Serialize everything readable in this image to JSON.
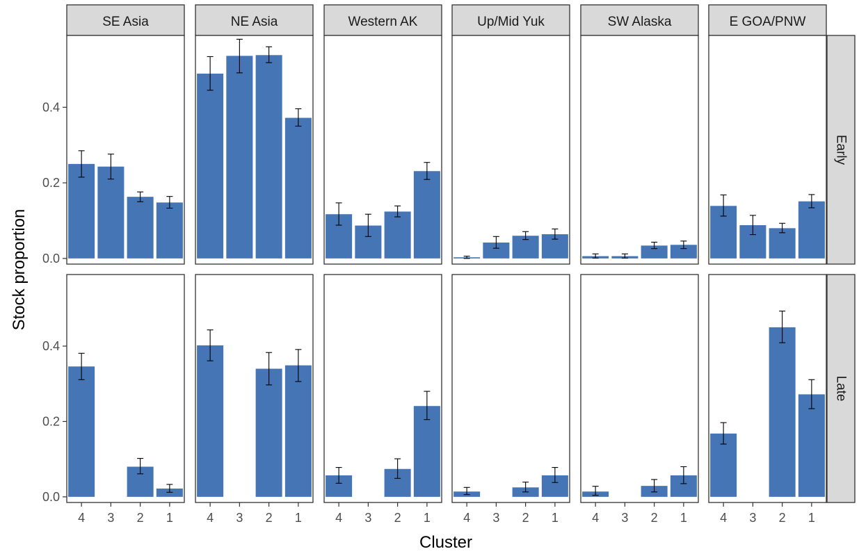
{
  "chart_data": {
    "type": "bar",
    "facet_columns": [
      "SE Asia",
      "NE Asia",
      "Western AK",
      "Up/Mid Yuk",
      "SW Alaska",
      "E GOA/PNW"
    ],
    "facet_rows": [
      "Early",
      "Late"
    ],
    "categories": [
      "4",
      "3",
      "2",
      "1"
    ],
    "xlabel": "Cluster",
    "ylabel": "Stock proportion",
    "ylim": [
      -0.015,
      0.59
    ],
    "yticks": [
      0.0,
      0.2,
      0.4
    ],
    "ytick_labels": [
      "0.0",
      "0.2",
      "0.4"
    ],
    "bar_color": "#4575b4",
    "strip_fill": "#d9d9d9",
    "grid": false,
    "error_bars": true,
    "panels": [
      {
        "row": "Early",
        "col": "SE Asia",
        "values": [
          0.25,
          0.243,
          0.163,
          0.148
        ],
        "lower": [
          0.215,
          0.21,
          0.15,
          0.133
        ],
        "upper": [
          0.285,
          0.276,
          0.176,
          0.164
        ]
      },
      {
        "row": "Early",
        "col": "NE Asia",
        "values": [
          0.489,
          0.536,
          0.538,
          0.372
        ],
        "lower": [
          0.445,
          0.491,
          0.518,
          0.35
        ],
        "upper": [
          0.534,
          0.58,
          0.56,
          0.396
        ]
      },
      {
        "row": "Early",
        "col": "Western AK",
        "values": [
          0.117,
          0.087,
          0.124,
          0.231
        ],
        "lower": [
          0.088,
          0.058,
          0.11,
          0.209
        ],
        "upper": [
          0.147,
          0.117,
          0.139,
          0.254
        ]
      },
      {
        "row": "Early",
        "col": "Up/Mid Yuk",
        "values": [
          0.003,
          0.042,
          0.06,
          0.064
        ],
        "lower": [
          0.0,
          0.027,
          0.05,
          0.051
        ],
        "upper": [
          0.006,
          0.058,
          0.071,
          0.078
        ]
      },
      {
        "row": "Early",
        "col": "SW Alaska",
        "values": [
          0.006,
          0.006,
          0.034,
          0.036
        ],
        "lower": [
          0.001,
          0.001,
          0.026,
          0.026
        ],
        "upper": [
          0.012,
          0.012,
          0.043,
          0.046
        ]
      },
      {
        "row": "Early",
        "col": "E GOA/PNW",
        "values": [
          0.139,
          0.088,
          0.08,
          0.151
        ],
        "lower": [
          0.112,
          0.063,
          0.068,
          0.134
        ],
        "upper": [
          0.168,
          0.114,
          0.093,
          0.169
        ]
      },
      {
        "row": "Late",
        "col": "SE Asia",
        "values": [
          0.346,
          0.0,
          0.08,
          0.022
        ],
        "lower": [
          0.311,
          null,
          0.061,
          0.012
        ],
        "upper": [
          0.381,
          null,
          0.102,
          0.033
        ]
      },
      {
        "row": "Late",
        "col": "NE Asia",
        "values": [
          0.402,
          0.0,
          0.34,
          0.349
        ],
        "lower": [
          0.361,
          null,
          0.297,
          0.306
        ],
        "upper": [
          0.443,
          null,
          0.383,
          0.391
        ]
      },
      {
        "row": "Late",
        "col": "Western AK",
        "values": [
          0.057,
          0.0,
          0.074,
          0.241
        ],
        "lower": [
          0.036,
          null,
          0.049,
          0.205
        ],
        "upper": [
          0.078,
          null,
          0.101,
          0.28
        ]
      },
      {
        "row": "Late",
        "col": "Up/Mid Yuk",
        "values": [
          0.014,
          0.0,
          0.025,
          0.057
        ],
        "lower": [
          0.006,
          null,
          0.013,
          0.038
        ],
        "upper": [
          0.025,
          null,
          0.039,
          0.078
        ]
      },
      {
        "row": "Late",
        "col": "SW Alaska",
        "values": [
          0.014,
          0.0,
          0.029,
          0.057
        ],
        "lower": [
          0.004,
          null,
          0.013,
          0.035
        ],
        "upper": [
          0.028,
          null,
          0.046,
          0.08
        ]
      },
      {
        "row": "Late",
        "col": "E GOA/PNW",
        "values": [
          0.168,
          0.0,
          0.45,
          0.272
        ],
        "lower": [
          0.14,
          null,
          0.409,
          0.234
        ],
        "upper": [
          0.197,
          null,
          0.493,
          0.311
        ]
      }
    ]
  }
}
